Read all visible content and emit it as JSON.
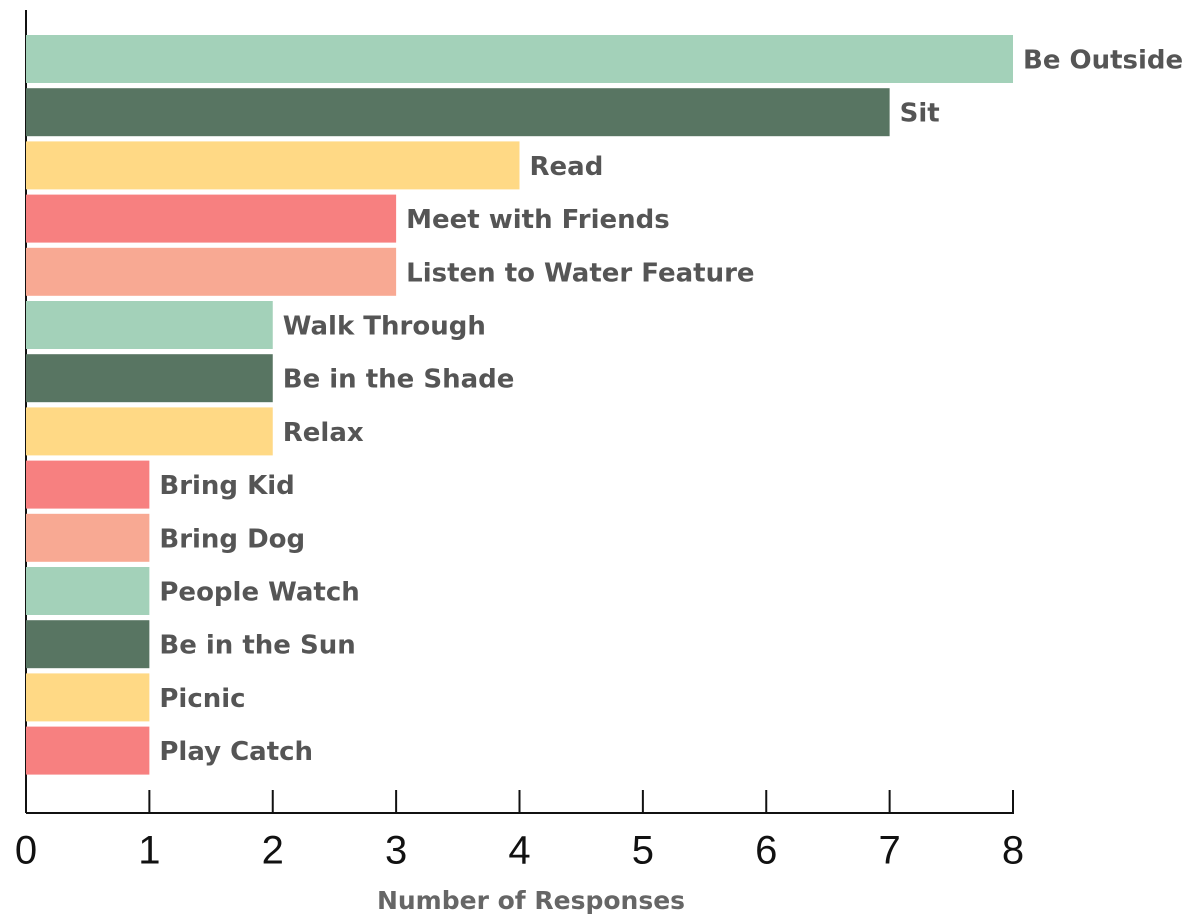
{
  "chart_data": {
    "type": "barh",
    "categories": [
      "Be Outside",
      "Sit",
      "Read",
      "Meet with Friends",
      "Listen to Water Feature",
      "Walk Through",
      "Be in the Shade",
      "Relax",
      "Bring Kid",
      "Bring Dog",
      "People Watch",
      "Be in the Sun",
      "Picnic",
      "Play Catch"
    ],
    "values": [
      8,
      7,
      4,
      3,
      3,
      2,
      2,
      2,
      1,
      1,
      1,
      1,
      1,
      1
    ],
    "colors": [
      "#a3d1b9",
      "#587562",
      "#ffd985",
      "#f78080",
      "#f8a993",
      "#a3d1b9",
      "#587562",
      "#ffd985",
      "#f78080",
      "#f8a993",
      "#a3d1b9",
      "#587562",
      "#ffd985",
      "#f78080"
    ],
    "xlabel": "Number of Responses",
    "xlim": [
      0,
      8
    ],
    "xticks": [
      0,
      1,
      2,
      3,
      4,
      5,
      6,
      7,
      8
    ],
    "grid": false
  }
}
